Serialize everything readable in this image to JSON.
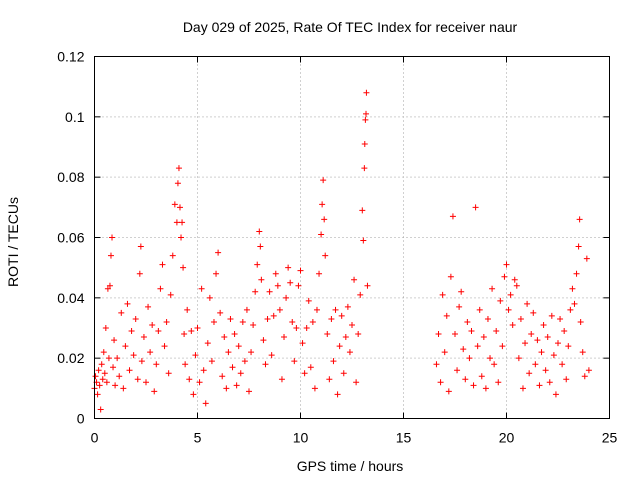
{
  "chart_data": {
    "type": "scatter",
    "title": "Day 029 of 2025, Rate Of TEC Index for receiver naur",
    "xlabel": "GPS time / hours",
    "ylabel": "ROTI / TECUs",
    "xlim": [
      0,
      25
    ],
    "ylim": [
      0,
      0.12
    ],
    "x_ticks": [
      0,
      5,
      10,
      15,
      20,
      25
    ],
    "x_tick_labels": [
      "0",
      "5",
      "10",
      "15",
      "20",
      "25"
    ],
    "y_ticks": [
      0,
      0.02,
      0.04,
      0.06,
      0.08,
      0.1,
      0.12
    ],
    "y_tick_labels": [
      "0",
      "0.02",
      "0.04",
      "0.06",
      "0.08",
      "0.1",
      "0.12"
    ],
    "grid": true,
    "marker": "plus",
    "color": "#ff0000",
    "data_gap_hours": [
      13.3,
      16.6
    ],
    "series": [
      {
        "points": [
          [
            0.0,
            0.01
          ],
          [
            0.05,
            0.014
          ],
          [
            0.1,
            0.012
          ],
          [
            0.15,
            0.008
          ],
          [
            0.2,
            0.016
          ],
          [
            0.25,
            0.011
          ],
          [
            0.3,
            0.003
          ],
          [
            0.35,
            0.018
          ],
          [
            0.4,
            0.013
          ],
          [
            0.45,
            0.022
          ],
          [
            0.5,
            0.015
          ],
          [
            0.55,
            0.03
          ],
          [
            0.6,
            0.012
          ],
          [
            0.65,
            0.043
          ],
          [
            0.7,
            0.02
          ],
          [
            0.75,
            0.044
          ],
          [
            0.8,
            0.054
          ],
          [
            0.85,
            0.06
          ],
          [
            0.9,
            0.017
          ],
          [
            0.95,
            0.026
          ],
          [
            1.0,
            0.011
          ],
          [
            1.1,
            0.02
          ],
          [
            1.2,
            0.014
          ],
          [
            1.3,
            0.035
          ],
          [
            1.4,
            0.01
          ],
          [
            1.5,
            0.024
          ],
          [
            1.6,
            0.038
          ],
          [
            1.7,
            0.016
          ],
          [
            1.8,
            0.029
          ],
          [
            1.9,
            0.021
          ],
          [
            2.0,
            0.033
          ],
          [
            2.1,
            0.013
          ],
          [
            2.2,
            0.048
          ],
          [
            2.25,
            0.057
          ],
          [
            2.3,
            0.019
          ],
          [
            2.4,
            0.027
          ],
          [
            2.5,
            0.012
          ],
          [
            2.6,
            0.037
          ],
          [
            2.7,
            0.022
          ],
          [
            2.8,
            0.031
          ],
          [
            2.9,
            0.009
          ],
          [
            3.0,
            0.018
          ],
          [
            3.1,
            0.029
          ],
          [
            3.2,
            0.043
          ],
          [
            3.3,
            0.051
          ],
          [
            3.4,
            0.024
          ],
          [
            3.5,
            0.032
          ],
          [
            3.6,
            0.015
          ],
          [
            3.7,
            0.041
          ],
          [
            3.8,
            0.054
          ],
          [
            3.9,
            0.071
          ],
          [
            4.0,
            0.065
          ],
          [
            4.05,
            0.078
          ],
          [
            4.1,
            0.083
          ],
          [
            4.15,
            0.07
          ],
          [
            4.2,
            0.06
          ],
          [
            4.25,
            0.065
          ],
          [
            4.3,
            0.05
          ],
          [
            4.35,
            0.028
          ],
          [
            4.4,
            0.018
          ],
          [
            4.5,
            0.036
          ],
          [
            4.6,
            0.013
          ],
          [
            4.7,
            0.029
          ],
          [
            4.8,
            0.008
          ],
          [
            4.9,
            0.021
          ],
          [
            5.0,
            0.03
          ],
          [
            5.1,
            0.012
          ],
          [
            5.2,
            0.043
          ],
          [
            5.3,
            0.016
          ],
          [
            5.4,
            0.005
          ],
          [
            5.5,
            0.025
          ],
          [
            5.6,
            0.04
          ],
          [
            5.7,
            0.019
          ],
          [
            5.8,
            0.032
          ],
          [
            5.9,
            0.048
          ],
          [
            6.0,
            0.055
          ],
          [
            6.1,
            0.035
          ],
          [
            6.2,
            0.014
          ],
          [
            6.3,
            0.027
          ],
          [
            6.4,
            0.01
          ],
          [
            6.5,
            0.022
          ],
          [
            6.6,
            0.033
          ],
          [
            6.7,
            0.017
          ],
          [
            6.8,
            0.028
          ],
          [
            6.9,
            0.011
          ],
          [
            7.0,
            0.024
          ],
          [
            7.1,
            0.015
          ],
          [
            7.2,
            0.032
          ],
          [
            7.3,
            0.019
          ],
          [
            7.4,
            0.036
          ],
          [
            7.5,
            0.009
          ],
          [
            7.6,
            0.022
          ],
          [
            7.7,
            0.031
          ],
          [
            7.8,
            0.042
          ],
          [
            7.9,
            0.051
          ],
          [
            8.0,
            0.062
          ],
          [
            8.05,
            0.057
          ],
          [
            8.1,
            0.046
          ],
          [
            8.2,
            0.026
          ],
          [
            8.3,
            0.018
          ],
          [
            8.4,
            0.033
          ],
          [
            8.5,
            0.042
          ],
          [
            8.6,
            0.021
          ],
          [
            8.7,
            0.034
          ],
          [
            8.8,
            0.048
          ],
          [
            8.9,
            0.044
          ],
          [
            9.0,
            0.036
          ],
          [
            9.1,
            0.013
          ],
          [
            9.2,
            0.027
          ],
          [
            9.3,
            0.04
          ],
          [
            9.4,
            0.05
          ],
          [
            9.5,
            0.045
          ],
          [
            9.6,
            0.032
          ],
          [
            9.7,
            0.019
          ],
          [
            9.8,
            0.03
          ],
          [
            9.9,
            0.044
          ],
          [
            10.0,
            0.049
          ],
          [
            10.1,
            0.025
          ],
          [
            10.2,
            0.015
          ],
          [
            10.3,
            0.03
          ],
          [
            10.4,
            0.039
          ],
          [
            10.5,
            0.017
          ],
          [
            10.6,
            0.032
          ],
          [
            10.7,
            0.01
          ],
          [
            10.8,
            0.036
          ],
          [
            10.9,
            0.048
          ],
          [
            11.0,
            0.061
          ],
          [
            11.05,
            0.071
          ],
          [
            11.1,
            0.079
          ],
          [
            11.15,
            0.066
          ],
          [
            11.2,
            0.054
          ],
          [
            11.3,
            0.028
          ],
          [
            11.4,
            0.013
          ],
          [
            11.5,
            0.033
          ],
          [
            11.6,
            0.019
          ],
          [
            11.7,
            0.036
          ],
          [
            11.8,
            0.008
          ],
          [
            11.9,
            0.024
          ],
          [
            12.0,
            0.034
          ],
          [
            12.1,
            0.015
          ],
          [
            12.2,
            0.027
          ],
          [
            12.3,
            0.037
          ],
          [
            12.4,
            0.022
          ],
          [
            12.5,
            0.031
          ],
          [
            12.6,
            0.046
          ],
          [
            12.7,
            0.012
          ],
          [
            12.8,
            0.028
          ],
          [
            12.9,
            0.041
          ],
          [
            13.0,
            0.069
          ],
          [
            13.05,
            0.059
          ],
          [
            13.1,
            0.083
          ],
          [
            13.12,
            0.091
          ],
          [
            13.15,
            0.099
          ],
          [
            13.18,
            0.101
          ],
          [
            13.2,
            0.108
          ],
          [
            13.25,
            0.044
          ],
          [
            16.6,
            0.018
          ],
          [
            16.7,
            0.028
          ],
          [
            16.8,
            0.012
          ],
          [
            16.9,
            0.041
          ],
          [
            17.0,
            0.022
          ],
          [
            17.1,
            0.034
          ],
          [
            17.2,
            0.009
          ],
          [
            17.3,
            0.047
          ],
          [
            17.4,
            0.067
          ],
          [
            17.5,
            0.028
          ],
          [
            17.6,
            0.016
          ],
          [
            17.7,
            0.037
          ],
          [
            17.8,
            0.042
          ],
          [
            17.9,
            0.023
          ],
          [
            18.0,
            0.013
          ],
          [
            18.1,
            0.032
          ],
          [
            18.2,
            0.02
          ],
          [
            18.3,
            0.029
          ],
          [
            18.4,
            0.011
          ],
          [
            18.5,
            0.07
          ],
          [
            18.6,
            0.024
          ],
          [
            18.7,
            0.036
          ],
          [
            18.8,
            0.014
          ],
          [
            18.9,
            0.027
          ],
          [
            19.0,
            0.01
          ],
          [
            19.1,
            0.033
          ],
          [
            19.2,
            0.02
          ],
          [
            19.3,
            0.043
          ],
          [
            19.4,
            0.018
          ],
          [
            19.5,
            0.029
          ],
          [
            19.6,
            0.012
          ],
          [
            19.7,
            0.039
          ],
          [
            19.8,
            0.024
          ],
          [
            19.9,
            0.047
          ],
          [
            20.0,
            0.051
          ],
          [
            20.1,
            0.036
          ],
          [
            20.2,
            0.041
          ],
          [
            20.3,
            0.031
          ],
          [
            20.4,
            0.046
          ],
          [
            20.5,
            0.044
          ],
          [
            20.6,
            0.02
          ],
          [
            20.7,
            0.033
          ],
          [
            20.8,
            0.01
          ],
          [
            20.9,
            0.025
          ],
          [
            21.0,
            0.038
          ],
          [
            21.1,
            0.015
          ],
          [
            21.2,
            0.028
          ],
          [
            21.3,
            0.035
          ],
          [
            21.4,
            0.018
          ],
          [
            21.5,
            0.026
          ],
          [
            21.6,
            0.011
          ],
          [
            21.7,
            0.022
          ],
          [
            21.8,
            0.031
          ],
          [
            21.9,
            0.016
          ],
          [
            22.0,
            0.027
          ],
          [
            22.1,
            0.012
          ],
          [
            22.2,
            0.034
          ],
          [
            22.3,
            0.021
          ],
          [
            22.4,
            0.008
          ],
          [
            22.5,
            0.025
          ],
          [
            22.6,
            0.033
          ],
          [
            22.7,
            0.018
          ],
          [
            22.8,
            0.029
          ],
          [
            22.9,
            0.013
          ],
          [
            23.0,
            0.024
          ],
          [
            23.1,
            0.036
          ],
          [
            23.2,
            0.043
          ],
          [
            23.3,
            0.038
          ],
          [
            23.4,
            0.048
          ],
          [
            23.5,
            0.057
          ],
          [
            23.55,
            0.066
          ],
          [
            23.6,
            0.032
          ],
          [
            23.7,
            0.022
          ],
          [
            23.8,
            0.014
          ],
          [
            23.9,
            0.053
          ],
          [
            24.0,
            0.016
          ]
        ]
      }
    ]
  }
}
